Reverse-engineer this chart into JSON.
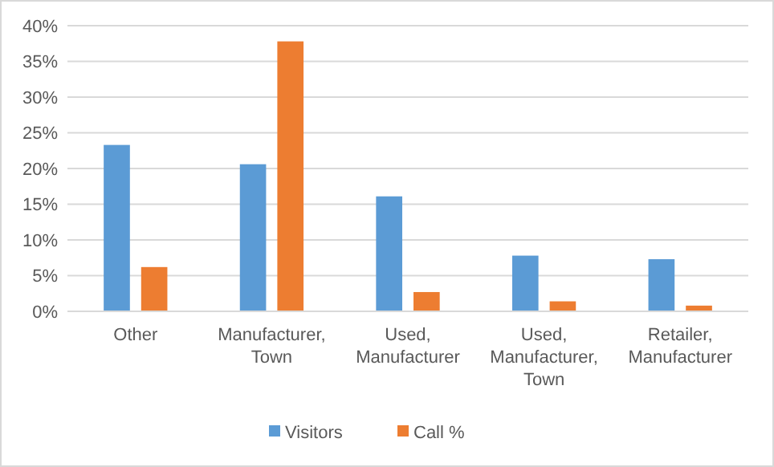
{
  "chart_data": {
    "type": "bar",
    "categories": [
      "Other",
      "Manufacturer, Town",
      "Used, Manufacturer",
      "Used, Manufacturer, Town",
      "Retailer, Manufacturer"
    ],
    "series": [
      {
        "name": "Visitors",
        "color": "#5b9bd5",
        "values": [
          23.3,
          20.6,
          16.1,
          7.8,
          7.3
        ]
      },
      {
        "name": "Call %",
        "color": "#ed7d31",
        "values": [
          6.2,
          37.8,
          2.7,
          1.4,
          0.8
        ]
      }
    ],
    "ylim": [
      0,
      40
    ],
    "yticks": [
      {
        "value": 0,
        "label": "0%"
      },
      {
        "value": 5,
        "label": "5%"
      },
      {
        "value": 10,
        "label": "10%"
      },
      {
        "value": 15,
        "label": "15%"
      },
      {
        "value": 20,
        "label": "20%"
      },
      {
        "value": 25,
        "label": "25%"
      },
      {
        "value": 30,
        "label": "30%"
      },
      {
        "value": 35,
        "label": "35%"
      },
      {
        "value": 40,
        "label": "40%"
      }
    ],
    "grid": "y",
    "legend": "bottom"
  }
}
